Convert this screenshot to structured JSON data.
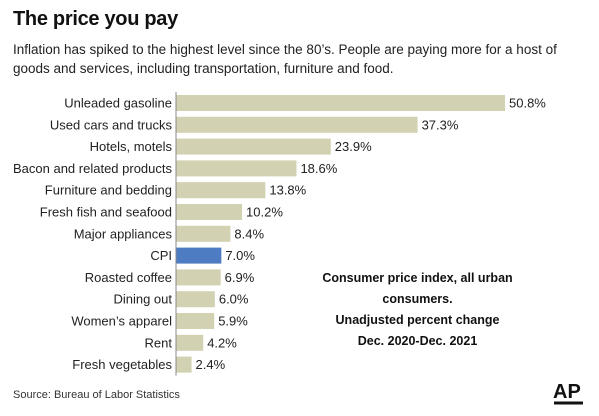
{
  "header": {
    "title": "The price you pay",
    "subtitle": "Inflation has spiked to the highest level since the 80’s. People are paying more for a host of goods and services, including transportation, furniture and food."
  },
  "annotation": {
    "line1": "Consumer price index, all urban consumers.",
    "line2": "Unadjusted percent change",
    "line3": "Dec. 2020-Dec. 2021"
  },
  "footer": {
    "source": "Source: Bureau of Labor Statistics",
    "logo": "AP"
  },
  "colors": {
    "bar": "#d2d1b2",
    "highlight": "#4d7cc3",
    "text": "#222222"
  },
  "chart_data": {
    "type": "bar",
    "orientation": "horizontal",
    "title": "The price you pay",
    "xlabel": "",
    "ylabel": "",
    "xlim": [
      0,
      52
    ],
    "grid": false,
    "legend": "none",
    "value_suffix": "%",
    "highlight_category": "CPI",
    "categories": [
      "Unleaded gasoline",
      "Used cars and trucks",
      "Hotels, motels",
      "Bacon and related products",
      "Furniture and bedding",
      "Fresh fish and seafood",
      "Major appliances",
      "CPI",
      "Roasted coffee",
      "Dining out",
      "Women’s apparel",
      "Rent",
      "Fresh vegetables"
    ],
    "values": [
      50.8,
      37.3,
      23.9,
      18.6,
      13.8,
      10.2,
      8.4,
      7.0,
      6.9,
      6.0,
      5.9,
      4.2,
      2.4
    ],
    "data_labels": [
      "50.8%",
      "37.3%",
      "23.9%",
      "18.6%",
      "13.8%",
      "10.2%",
      "8.4%",
      "7.0%",
      "6.9%",
      "6.0%",
      "5.9%",
      "4.2%",
      "2.4%"
    ]
  }
}
